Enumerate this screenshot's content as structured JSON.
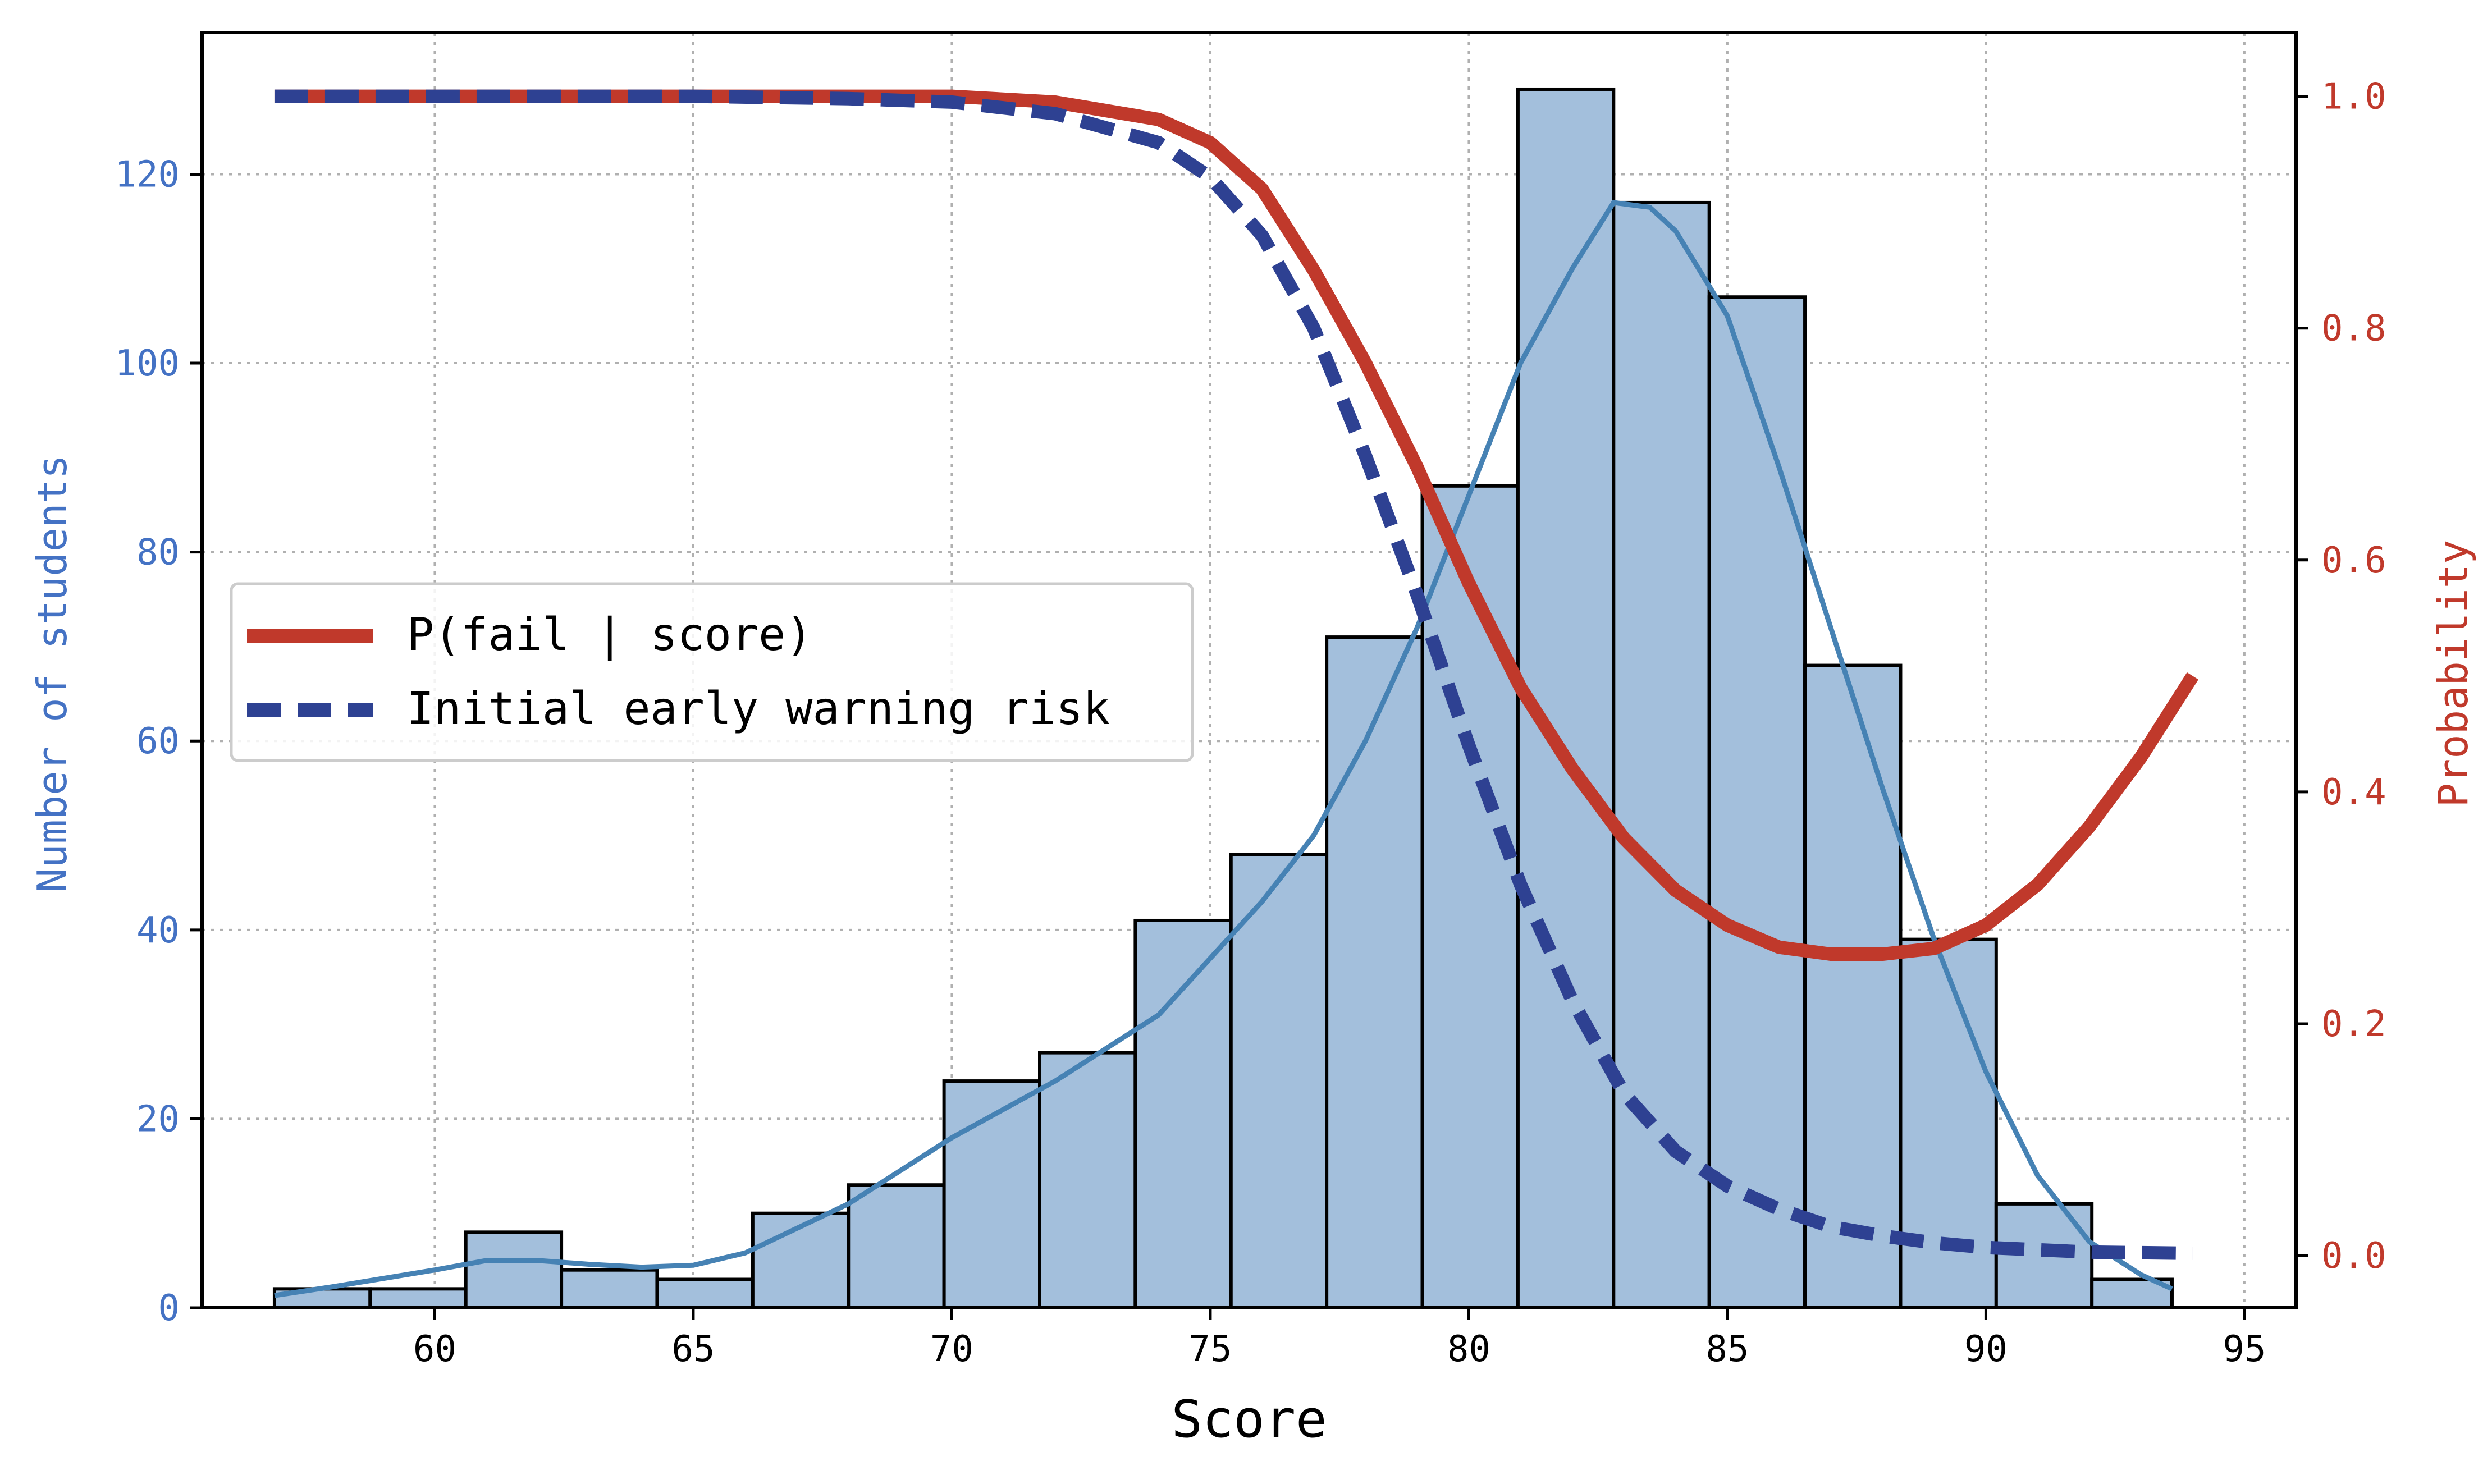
{
  "chart_data": {
    "type": "bar",
    "xlabel": "Score",
    "ylabel_left": "Number of students",
    "ylabel_right": "Probability",
    "xlim": [
      55.5,
      96
    ],
    "ylim_left": [
      0,
      135
    ],
    "ylim_right": [
      -0.045,
      1.055
    ],
    "x_ticks": [
      60,
      65,
      70,
      75,
      80,
      85,
      90,
      95
    ],
    "y_ticks_left": [
      0,
      20,
      40,
      60,
      80,
      100,
      120
    ],
    "y_ticks_right": [
      0.0,
      0.2,
      0.4,
      0.6,
      0.8,
      1.0
    ],
    "y_tick_labels_right": [
      "0.0",
      "0.2",
      "0.4",
      "0.6",
      "0.8",
      "1.0"
    ],
    "grid": true,
    "legend_position": "center-left",
    "histogram": {
      "bin_edges": [
        56.9,
        58.75,
        60.6,
        62.45,
        64.3,
        66.15,
        68.0,
        69.85,
        71.7,
        73.55,
        75.4,
        77.25,
        79.1,
        80.95,
        82.8,
        84.65,
        86.5,
        88.35,
        90.2,
        92.05,
        93.6
      ],
      "counts": [
        2,
        2,
        8,
        4,
        3,
        10,
        13,
        24,
        27,
        41,
        48,
        71,
        87,
        129,
        117,
        107,
        68,
        39,
        11,
        3
      ],
      "color": "#a3bfdc",
      "edge_color": "#000000"
    },
    "kde": {
      "x": [
        56.9,
        58.0,
        60.0,
        61.0,
        62.0,
        63.0,
        64.0,
        65.0,
        66.0,
        68.0,
        70.0,
        72.0,
        74.0,
        76.0,
        77.0,
        78.0,
        79.0,
        80.0,
        81.0,
        82.0,
        82.8,
        83.5,
        84.0,
        85.0,
        86.0,
        87.0,
        88.0,
        89.0,
        90.0,
        91.0,
        92.0,
        93.0,
        93.6
      ],
      "y": [
        1.3,
        2.2,
        4.0,
        5.0,
        5.0,
        4.6,
        4.3,
        4.5,
        5.8,
        11.0,
        18.0,
        24.0,
        31.0,
        43.0,
        50.0,
        60.0,
        72.0,
        86.0,
        100.0,
        110.0,
        117.0,
        116.5,
        114.0,
        105.0,
        89.0,
        72.0,
        55.0,
        39.0,
        25.0,
        14.0,
        7.0,
        3.5,
        2.0
      ],
      "color": "#4682b4"
    },
    "series": [
      {
        "name": "P(fail | score)",
        "color": "#c0392b",
        "style": "solid",
        "x": [
          56.9,
          60.0,
          65.0,
          70.0,
          72.0,
          74.0,
          75.0,
          76.0,
          77.0,
          78.0,
          79.0,
          80.0,
          81.0,
          82.0,
          83.0,
          84.0,
          85.0,
          86.0,
          87.0,
          88.0,
          89.0,
          90.0,
          91.0,
          92.0,
          93.0,
          94.0
        ],
        "y": [
          1.0,
          1.0,
          1.0,
          1.0,
          0.995,
          0.98,
          0.96,
          0.92,
          0.85,
          0.77,
          0.68,
          0.58,
          0.49,
          0.42,
          0.36,
          0.315,
          0.285,
          0.266,
          0.26,
          0.26,
          0.265,
          0.285,
          0.32,
          0.37,
          0.43,
          0.5
        ]
      },
      {
        "name": "Initial early warning risk",
        "color": "#2e4192",
        "style": "dashed",
        "x": [
          56.9,
          60.0,
          65.0,
          68.0,
          70.0,
          72.0,
          74.0,
          75.0,
          76.0,
          77.0,
          78.0,
          79.0,
          80.0,
          81.0,
          82.0,
          83.0,
          84.0,
          85.0,
          86.0,
          87.0,
          88.0,
          89.0,
          90.0,
          92.0,
          94.0
        ],
        "y": [
          1.0,
          1.0,
          1.0,
          0.998,
          0.995,
          0.985,
          0.96,
          0.93,
          0.88,
          0.8,
          0.69,
          0.57,
          0.44,
          0.32,
          0.22,
          0.14,
          0.09,
          0.06,
          0.04,
          0.025,
          0.017,
          0.011,
          0.007,
          0.003,
          0.002
        ]
      }
    ],
    "axis_colors": {
      "left": "#4472c4",
      "right": "#c0392b"
    }
  }
}
